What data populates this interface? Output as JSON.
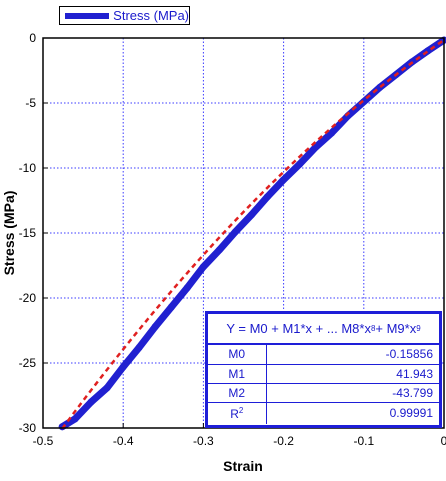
{
  "chart_data": {
    "type": "line",
    "title": "",
    "xlabel": "Strain",
    "ylabel": "Stress (MPa)",
    "xlim": [
      -0.5,
      0
    ],
    "ylim": [
      -30,
      0
    ],
    "xticks": [
      -0.5,
      -0.4,
      -0.3,
      -0.2,
      -0.1,
      0
    ],
    "xtick_labels": [
      "-0.5",
      "-0.4",
      "-0.3",
      "-0.2",
      "-0.1",
      "0"
    ],
    "yticks": [
      -30,
      -25,
      -20,
      -15,
      -10,
      -5,
      0
    ],
    "ytick_labels": [
      "-30",
      "-25",
      "-20",
      "-15",
      "-10",
      "-5",
      "0"
    ],
    "grid": true,
    "legend_position": "top-left",
    "series": [
      {
        "name": "Stress (MPa)",
        "color": "#2020d0",
        "x": [
          0,
          -0.02,
          -0.04,
          -0.06,
          -0.08,
          -0.1,
          -0.12,
          -0.14,
          -0.16,
          -0.18,
          -0.2,
          -0.22,
          -0.24,
          -0.26,
          -0.28,
          -0.3,
          -0.32,
          -0.34,
          -0.36,
          -0.38,
          -0.4,
          -0.42,
          -0.44,
          -0.46,
          -0.476
        ],
        "y": [
          -0.16,
          -0.98,
          -1.85,
          -2.83,
          -3.8,
          -4.9,
          -6.0,
          -7.3,
          -8.4,
          -9.7,
          -10.9,
          -12.2,
          -13.6,
          -14.9,
          -16.3,
          -17.6,
          -19.2,
          -20.7,
          -22.2,
          -23.8,
          -25.3,
          -26.9,
          -28.0,
          -29.3,
          -29.9
        ]
      }
    ],
    "fit": {
      "color": "#e02020",
      "m0": -0.15856,
      "m1": 41.943,
      "m2": -43.799
    }
  },
  "fit_table": {
    "equation_html": "Y = M0 + M1*x + ... M8*x<sup>8</sup> + M9*x<sup>9</sup>",
    "rows": [
      {
        "label": "M0",
        "value": "-0.15856"
      },
      {
        "label": "M1",
        "value": "41.943"
      },
      {
        "label": "M2",
        "value": "-43.799"
      },
      {
        "label": "R",
        "value": "0.99991",
        "sup": "2"
      }
    ]
  },
  "legend": {
    "label": "Stress (MPa)",
    "color": "#2020d0"
  }
}
